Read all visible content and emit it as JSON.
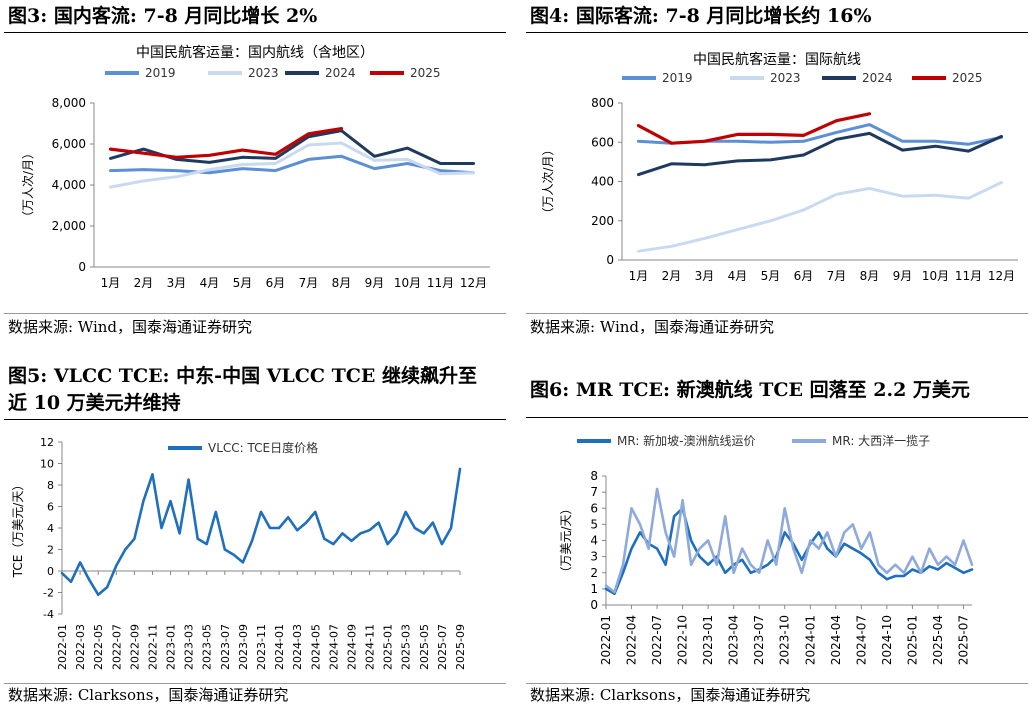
{
  "panels": [
    {
      "id": "fig3",
      "title": "图3:  国内客流:  7-8 月同比增长 2%",
      "source": "数据来源:  Wind，国泰海通证券研究"
    },
    {
      "id": "fig4",
      "title": "图4:  国际客流:  7-8 月同比增长约 16%",
      "source": "数据来源:  Wind，国泰海通证券研究"
    },
    {
      "id": "fig5",
      "title": "图5:  VLCC TCE:  中东-中国 VLCC TCE 继续飙升至",
      "title2": "近 10 万美元并维持",
      "source": "数据来源:  Clarksons，国泰海通证券研究"
    },
    {
      "id": "fig6",
      "title": "图6:  MR TCE:  新澳航线 TCE 回落至 2.2 万美元",
      "source": "数据来源:  Clarksons，国泰海通证券研究"
    }
  ],
  "chart_data": [
    {
      "type": "line",
      "title": "中国民航客运量：国内航线（含地区）",
      "ylabel": "（万人次/月）",
      "xlabel": "",
      "ylim": [
        0,
        8000
      ],
      "yticks": [
        0,
        2000,
        4000,
        6000,
        8000
      ],
      "ytick_labels": [
        "0",
        "2,000",
        "4,000",
        "6,000",
        "8,000"
      ],
      "categories": [
        "1月",
        "2月",
        "3月",
        "4月",
        "5月",
        "6月",
        "7月",
        "8月",
        "9月",
        "10月",
        "11月",
        "12月"
      ],
      "legend_position": "top",
      "grid": false,
      "series": [
        {
          "name": "2019",
          "color": "#5B8FD6",
          "values": [
            4700,
            4750,
            4700,
            4600,
            4800,
            4700,
            5250,
            5400,
            4800,
            5050,
            4700,
            4600
          ]
        },
        {
          "name": "2023",
          "color": "#C9DAF0",
          "values": [
            3900,
            4200,
            4400,
            4750,
            5000,
            5050,
            5950,
            6050,
            5200,
            5250,
            4550,
            4600
          ]
        },
        {
          "name": "2024",
          "color": "#1F3A5F",
          "values": [
            5300,
            5750,
            5250,
            5100,
            5350,
            5300,
            6350,
            6650,
            5400,
            5800,
            5050,
            5050
          ]
        },
        {
          "name": "2025",
          "color": "#C00000",
          "values": [
            5750,
            5550,
            5350,
            5450,
            5700,
            5500,
            6500,
            6750,
            null,
            null,
            null,
            null
          ]
        }
      ]
    },
    {
      "type": "line",
      "title": "中国民航客运量：国际航线",
      "ylabel": "（万人次/月）",
      "xlabel": "",
      "ylim": [
        0,
        800
      ],
      "yticks": [
        0,
        200,
        400,
        600,
        800
      ],
      "ytick_labels": [
        "0",
        "200",
        "400",
        "600",
        "800"
      ],
      "categories": [
        "1月",
        "2月",
        "3月",
        "4月",
        "5月",
        "6月",
        "7月",
        "8月",
        "9月",
        "10月",
        "11月",
        "12月"
      ],
      "legend_position": "top",
      "grid": false,
      "series": [
        {
          "name": "2019",
          "color": "#5B8FD6",
          "values": [
            605,
            595,
            605,
            605,
            600,
            605,
            650,
            690,
            605,
            605,
            590,
            625
          ]
        },
        {
          "name": "2023",
          "color": "#C9DAF0",
          "values": [
            45,
            70,
            110,
            155,
            200,
            255,
            335,
            365,
            325,
            330,
            315,
            395
          ]
        },
        {
          "name": "2024",
          "color": "#1F3A5F",
          "values": [
            435,
            490,
            485,
            505,
            510,
            535,
            615,
            645,
            560,
            580,
            555,
            630
          ]
        },
        {
          "name": "2025",
          "color": "#C00000",
          "values": [
            685,
            595,
            605,
            640,
            640,
            635,
            710,
            745,
            null,
            null,
            null,
            null
          ]
        }
      ]
    },
    {
      "type": "line",
      "title": "",
      "ylabel": "TCE（万美元/天）",
      "xlabel": "",
      "ylim": [
        -4,
        12
      ],
      "yticks": [
        -4,
        -2,
        0,
        2,
        4,
        6,
        8,
        10,
        12
      ],
      "x_tick_labels": [
        "2022-01",
        "2022-03",
        "2022-05",
        "2022-07",
        "2022-09",
        "2022-11",
        "2023-01",
        "2023-03",
        "2023-05",
        "2023-07",
        "2023-09",
        "2023-11",
        "2024-01",
        "2024-03",
        "2024-05",
        "2024-07",
        "2024-09",
        "2024-11",
        "2025-01",
        "2025-03",
        "2025-05",
        "2025-07",
        "2025-09"
      ],
      "legend_position": "top",
      "grid": false,
      "series": [
        {
          "name": "VLCC:  TCE日度价格",
          "color": "#1F6FBF",
          "x": [
            "2022-01",
            "2022-02",
            "2022-03",
            "2022-04",
            "2022-05",
            "2022-06",
            "2022-07",
            "2022-08",
            "2022-09",
            "2022-10",
            "2022-11",
            "2022-12",
            "2023-01",
            "2023-02",
            "2023-03",
            "2023-04",
            "2023-05",
            "2023-06",
            "2023-07",
            "2023-08",
            "2023-09",
            "2023-10",
            "2023-11",
            "2023-12",
            "2024-01",
            "2024-02",
            "2024-03",
            "2024-04",
            "2024-05",
            "2024-06",
            "2024-07",
            "2024-08",
            "2024-09",
            "2024-10",
            "2024-11",
            "2024-12",
            "2025-01",
            "2025-02",
            "2025-03",
            "2025-04",
            "2025-05",
            "2025-06",
            "2025-07",
            "2025-08",
            "2025-09"
          ],
          "values": [
            -0.2,
            -1.0,
            0.8,
            -0.8,
            -2.2,
            -1.5,
            0.5,
            2.0,
            3.0,
            6.5,
            9.0,
            4.0,
            6.5,
            3.5,
            8.5,
            3.0,
            2.5,
            5.5,
            2.0,
            1.5,
            0.8,
            2.8,
            5.5,
            4.0,
            4.0,
            5.0,
            3.8,
            4.5,
            5.5,
            3.0,
            2.5,
            3.5,
            2.8,
            3.5,
            3.8,
            4.5,
            2.5,
            3.5,
            5.5,
            4.0,
            3.5,
            4.5,
            2.5,
            4.0,
            9.5
          ]
        }
      ]
    },
    {
      "type": "line",
      "title": "",
      "ylabel": "（万美元/天）",
      "xlabel": "",
      "ylim": [
        0,
        8
      ],
      "yticks": [
        0,
        1,
        2,
        3,
        4,
        5,
        6,
        7,
        8
      ],
      "x_tick_labels": [
        "2022-01",
        "2022-04",
        "2022-07",
        "2022-10",
        "2023-01",
        "2023-04",
        "2023-07",
        "2023-10",
        "2024-01",
        "2024-04",
        "2024-07",
        "2024-10",
        "2025-01",
        "2025-04",
        "2025-07"
      ],
      "legend_position": "top",
      "grid": false,
      "series": [
        {
          "name": "MR:  新加坡-澳洲航线运价",
          "color": "#1F6FBF",
          "x": [
            "2022-01",
            "2022-02",
            "2022-03",
            "2022-04",
            "2022-05",
            "2022-06",
            "2022-07",
            "2022-08",
            "2022-09",
            "2022-10",
            "2022-11",
            "2022-12",
            "2023-01",
            "2023-02",
            "2023-03",
            "2023-04",
            "2023-05",
            "2023-06",
            "2023-07",
            "2023-08",
            "2023-09",
            "2023-10",
            "2023-11",
            "2023-12",
            "2024-01",
            "2024-02",
            "2024-03",
            "2024-04",
            "2024-05",
            "2024-06",
            "2024-07",
            "2024-08",
            "2024-09",
            "2024-10",
            "2024-11",
            "2024-12",
            "2025-01",
            "2025-02",
            "2025-03",
            "2025-04",
            "2025-05",
            "2025-06",
            "2025-07",
            "2025-08"
          ],
          "values": [
            1.0,
            0.7,
            2.0,
            3.5,
            4.5,
            3.8,
            3.5,
            2.5,
            5.5,
            6.0,
            4.0,
            3.0,
            2.5,
            3.0,
            2.0,
            2.5,
            2.8,
            2.0,
            2.2,
            2.5,
            3.0,
            4.5,
            3.8,
            2.8,
            3.8,
            4.5,
            3.5,
            3.0,
            3.8,
            3.5,
            3.2,
            2.8,
            2.0,
            1.6,
            1.8,
            1.8,
            2.2,
            2.0,
            2.4,
            2.2,
            2.6,
            2.3,
            2.0,
            2.2
          ]
        },
        {
          "name": "MR:  大西洋一揽子",
          "color": "#8EA9DB",
          "x": [
            "2022-01",
            "2022-02",
            "2022-03",
            "2022-04",
            "2022-05",
            "2022-06",
            "2022-07",
            "2022-08",
            "2022-09",
            "2022-10",
            "2022-11",
            "2022-12",
            "2023-01",
            "2023-02",
            "2023-03",
            "2023-04",
            "2023-05",
            "2023-06",
            "2023-07",
            "2023-08",
            "2023-09",
            "2023-10",
            "2023-11",
            "2023-12",
            "2024-01",
            "2024-02",
            "2024-03",
            "2024-04",
            "2024-05",
            "2024-06",
            "2024-07",
            "2024-08",
            "2024-09",
            "2024-10",
            "2024-11",
            "2024-12",
            "2025-01",
            "2025-02",
            "2025-03",
            "2025-04",
            "2025-05",
            "2025-06",
            "2025-07",
            "2025-08"
          ],
          "values": [
            1.2,
            0.8,
            2.5,
            6.0,
            5.0,
            3.5,
            7.2,
            4.5,
            3.0,
            6.5,
            2.5,
            3.5,
            4.0,
            2.5,
            5.5,
            2.0,
            3.5,
            2.5,
            2.0,
            4.0,
            2.5,
            6.0,
            3.5,
            2.0,
            4.0,
            3.5,
            4.5,
            3.0,
            4.5,
            5.0,
            3.5,
            4.5,
            2.5,
            2.0,
            2.5,
            2.0,
            3.0,
            2.0,
            3.5,
            2.5,
            3.0,
            2.5,
            4.0,
            2.5
          ]
        }
      ]
    }
  ]
}
